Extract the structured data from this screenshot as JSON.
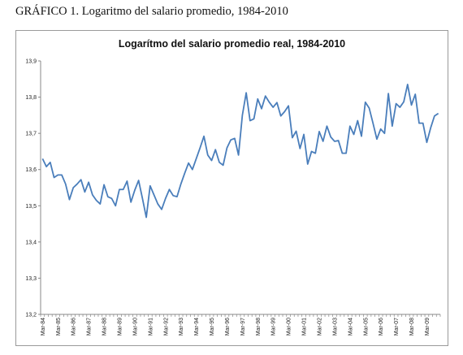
{
  "caption": "GRÁFICO 1. Logaritmo del salario promedio, 1984-2010",
  "colors": {
    "series": "#4a7ebb",
    "axis": "#888888",
    "frame": "#9a9a9a"
  },
  "chart_data": {
    "type": "line",
    "title": "Logarítmo del salario promedio real, 1984-2010",
    "xlabel": "",
    "ylabel": "",
    "ylim": [
      13.2,
      13.9
    ],
    "yticks": [
      13.9,
      13.8,
      13.7,
      13.6,
      13.5,
      13.4,
      13.3,
      13.2
    ],
    "ytick_labels": [
      "13,9",
      "13,8",
      "13,7",
      "13,6",
      "13,5",
      "13,4",
      "13,3",
      "13,2"
    ],
    "xtick_labels": [
      "Mar-84",
      "Mar-85",
      "Mar-86",
      "Mar-87",
      "Mar-88",
      "Mar-89",
      "Mar-90",
      "Mar-91",
      "Mar-92",
      "Mar-93",
      "Mar-94",
      "Mar-95",
      "Mar-96",
      "Mar-97",
      "Mar-98",
      "Mar-99",
      "Mar-00",
      "Mar-01",
      "Mar-02",
      "Mar-03",
      "Mar-04",
      "Mar-05",
      "Mar-06",
      "Mar-07",
      "Mar-08",
      "Mar-09"
    ],
    "x_frequency": "quarterly",
    "grid": false,
    "legend": "none",
    "series": [
      {
        "values": [
          13.63,
          13.608,
          13.62,
          13.578,
          13.585,
          13.585,
          13.56,
          13.517,
          13.55,
          13.56,
          13.572,
          13.538,
          13.565,
          13.53,
          13.515,
          13.505,
          13.558,
          13.525,
          13.52,
          13.5,
          13.545,
          13.545,
          13.568,
          13.51,
          13.543,
          13.57,
          13.52,
          13.468,
          13.555,
          13.53,
          13.505,
          13.49,
          13.52,
          13.545,
          13.528,
          13.525,
          13.56,
          13.59,
          13.618,
          13.6,
          13.63,
          13.66,
          13.692,
          13.64,
          13.625,
          13.655,
          13.62,
          13.612,
          13.66,
          13.682,
          13.686,
          13.64,
          13.75,
          13.812,
          13.735,
          13.74,
          13.795,
          13.768,
          13.803,
          13.786,
          13.772,
          13.785,
          13.748,
          13.76,
          13.776,
          13.688,
          13.706,
          13.658,
          13.697,
          13.615,
          13.65,
          13.645,
          13.705,
          13.678,
          13.72,
          13.69,
          13.678,
          13.68,
          13.645,
          13.645,
          13.72,
          13.697,
          13.735,
          13.692,
          13.786,
          13.77,
          13.728,
          13.684,
          13.712,
          13.7,
          13.81,
          13.72,
          13.782,
          13.772,
          13.787,
          13.835,
          13.778,
          13.808,
          13.728,
          13.728,
          13.675,
          13.715,
          13.748,
          13.755
        ]
      }
    ]
  }
}
